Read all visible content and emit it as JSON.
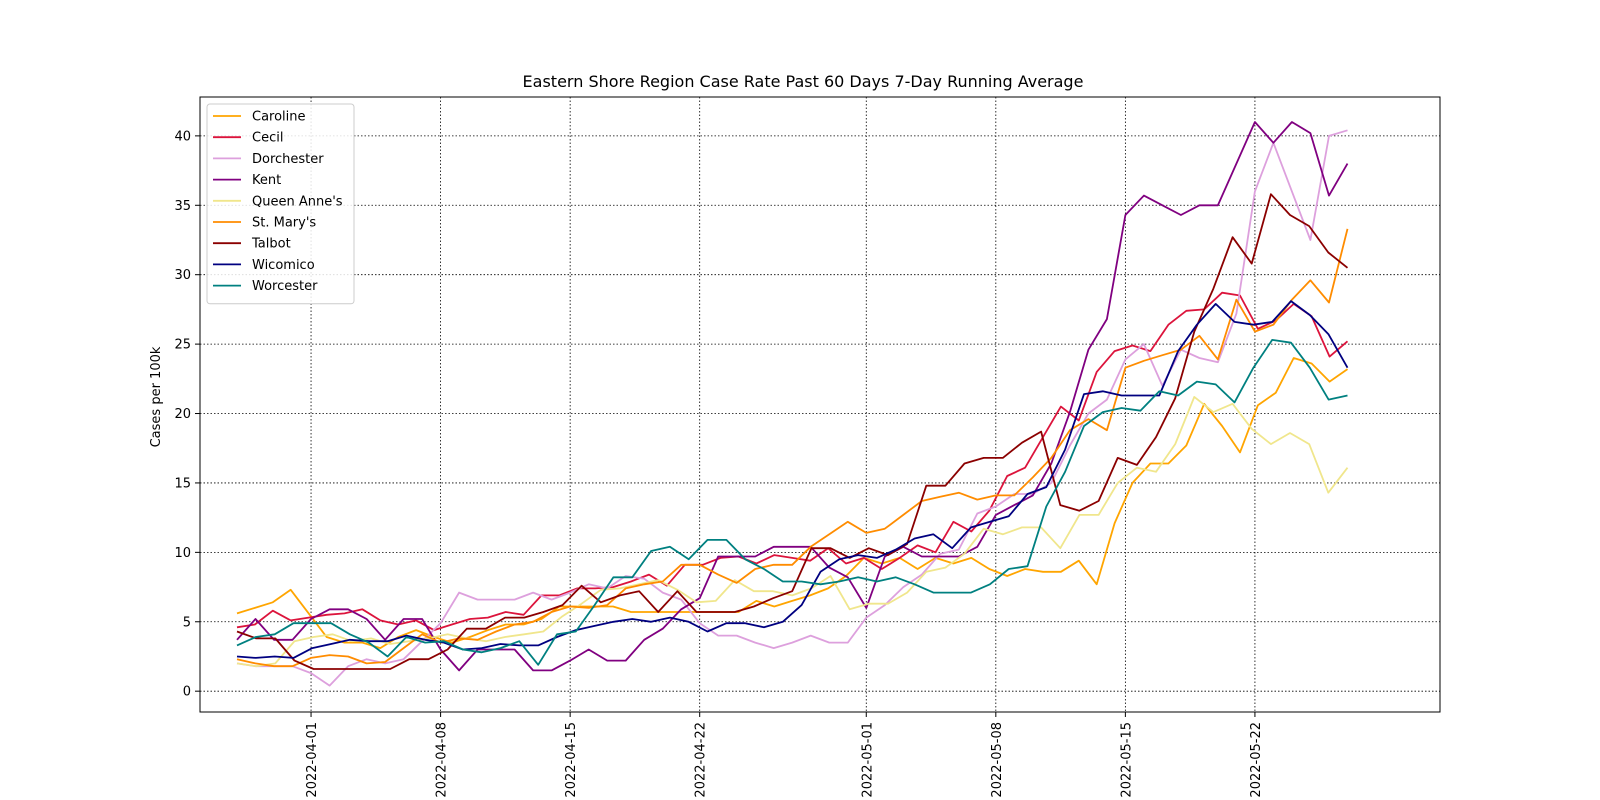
{
  "chart_data": {
    "type": "line",
    "title": "Eastern Shore Region Case Rate  Past 60 Days 7-Day Running Average",
    "xlabel": "",
    "ylabel": "Cases per 100k",
    "x_start": "2022-03-28",
    "x_end": "2022-05-27",
    "xlim": [
      "2022-03-26",
      "2022-06-01"
    ],
    "ylim": [
      -1.5,
      42.8
    ],
    "xticks": [
      "2022-04-01",
      "2022-04-08",
      "2022-04-15",
      "2022-04-22",
      "2022-05-01",
      "2022-05-08",
      "2022-05-15",
      "2022-05-22"
    ],
    "yticks": [
      0,
      5,
      10,
      15,
      20,
      25,
      30,
      35,
      40
    ],
    "grid": true,
    "legend_position": "upper-left",
    "series": [
      {
        "name": "Caroline",
        "color": "#FFA500",
        "values": [
          5.6,
          6.0,
          6.4,
          7.3,
          5.6,
          3.9,
          3.5,
          3.5,
          3.1,
          3.9,
          4.4,
          3.9,
          3.5,
          3.9,
          4.4,
          4.8,
          4.8,
          5.2,
          6.1,
          6.1,
          6.1,
          6.1,
          5.7,
          5.7,
          5.7,
          5.7,
          5.7,
          5.7,
          5.7,
          6.5,
          6.1,
          6.5,
          6.9,
          7.4,
          8.3,
          9.6,
          9.2,
          9.6,
          8.8,
          9.6,
          9.2,
          9.6,
          8.8,
          8.3,
          8.8,
          8.6,
          8.6,
          9.4,
          7.7,
          12.1,
          15.0,
          16.4,
          16.4,
          17.7,
          20.7,
          19.1,
          17.2,
          20.6,
          21.5,
          24.0,
          23.6,
          22.3,
          23.2
        ]
      },
      {
        "name": "Cecil",
        "color": "#DC143C",
        "values": [
          4.6,
          4.8,
          5.8,
          5.1,
          5.3,
          5.5,
          5.6,
          5.9,
          5.1,
          4.8,
          5.1,
          4.4,
          4.8,
          5.2,
          5.3,
          5.7,
          5.5,
          6.9,
          6.9,
          7.4,
          7.4,
          7.5,
          7.9,
          8.4,
          7.6,
          9.1,
          9.1,
          9.6,
          9.7,
          9.2,
          9.8,
          9.6,
          9.4,
          10.3,
          9.2,
          9.6,
          8.8,
          9.6,
          10.5,
          10.0,
          12.2,
          11.5,
          13.0,
          15.5,
          16.1,
          18.3,
          20.5,
          19.5,
          23.0,
          24.5,
          24.9,
          24.5,
          26.4,
          27.4,
          27.5,
          28.7,
          28.5,
          26.1,
          26.7,
          27.9,
          27.0,
          24.1,
          25.2
        ]
      },
      {
        "name": "Dorchester",
        "color": "#DDA0DD",
        "values": [
          2.0,
          1.8,
          1.8,
          1.8,
          1.3,
          0.4,
          1.8,
          2.3,
          2.0,
          2.3,
          3.6,
          4.9,
          7.1,
          6.6,
          6.6,
          6.6,
          7.1,
          6.6,
          7.1,
          7.7,
          7.4,
          8.3,
          8.1,
          7.1,
          6.6,
          4.9,
          4.0,
          4.0,
          3.5,
          3.1,
          3.5,
          4.0,
          3.5,
          3.5,
          5.3,
          6.2,
          7.5,
          8.4,
          9.9,
          10.2,
          12.8,
          13.3,
          14.2,
          14.2,
          15.0,
          17.7,
          20.0,
          21.0,
          23.9,
          25.0,
          22.0,
          24.6,
          24.0,
          23.7,
          27.2,
          36.0,
          39.5,
          36.0,
          32.5,
          40.0,
          40.4
        ]
      },
      {
        "name": "Kent",
        "color": "#800080",
        "values": [
          3.7,
          5.2,
          3.7,
          3.7,
          5.2,
          5.9,
          5.9,
          5.2,
          3.7,
          5.2,
          5.2,
          3.0,
          1.5,
          3.0,
          3.0,
          3.0,
          1.5,
          1.5,
          2.2,
          3.0,
          2.2,
          2.2,
          3.7,
          4.5,
          5.9,
          6.7,
          9.7,
          9.7,
          9.7,
          10.4,
          10.4,
          10.4,
          8.9,
          8.2,
          6.0,
          9.7,
          10.4,
          9.7,
          9.7,
          9.7,
          10.4,
          12.7,
          13.4,
          14.1,
          16.4,
          20.1,
          24.6,
          26.8,
          34.3,
          35.7,
          35.0,
          34.3,
          35.0,
          35.0,
          38.0,
          41.0,
          39.5,
          41.0,
          40.2,
          35.7,
          38.0
        ]
      },
      {
        "name": "Queen Anne's",
        "color": "#F0E68C",
        "values": [
          2.0,
          1.8,
          2.0,
          3.6,
          3.9,
          4.1,
          3.6,
          3.8,
          3.4,
          3.6,
          3.8,
          4.1,
          3.8,
          3.6,
          3.9,
          4.1,
          4.3,
          5.4,
          6.3,
          7.3,
          7.4,
          7.7,
          8.0,
          7.3,
          6.4,
          6.5,
          8.0,
          7.2,
          7.2,
          6.9,
          7.4,
          8.3,
          5.9,
          6.3,
          6.3,
          7.1,
          8.6,
          8.9,
          9.9,
          11.7,
          11.3,
          11.8,
          11.8,
          10.3,
          12.7,
          12.7,
          15.0,
          16.1,
          15.8,
          17.8,
          21.2,
          20.1,
          20.7,
          18.9,
          17.8,
          18.6,
          17.8,
          14.3,
          16.1
        ]
      },
      {
        "name": "St. Mary's",
        "color": "#FF8C00",
        "values": [
          2.3,
          2.0,
          1.8,
          1.8,
          2.4,
          2.6,
          2.5,
          2.0,
          2.1,
          3.1,
          4.1,
          3.5,
          3.8,
          3.7,
          4.3,
          4.8,
          5.0,
          5.7,
          6.1,
          6.0,
          6.2,
          7.4,
          7.7,
          7.9,
          9.1,
          9.1,
          8.4,
          7.8,
          8.8,
          9.1,
          9.1,
          10.4,
          11.3,
          12.2,
          11.4,
          11.7,
          12.7,
          13.7,
          14.0,
          14.3,
          13.8,
          14.1,
          14.1,
          15.4,
          16.8,
          18.8,
          19.6,
          18.8,
          23.3,
          23.8,
          24.2,
          24.6,
          25.6,
          23.9,
          28.2,
          25.9,
          26.4,
          28.2,
          29.6,
          28.0,
          33.3
        ]
      },
      {
        "name": "Talbot",
        "color": "#8B0000",
        "values": [
          4.3,
          3.8,
          3.8,
          2.2,
          1.6,
          1.6,
          1.6,
          1.6,
          1.6,
          2.3,
          2.3,
          3.0,
          4.5,
          4.5,
          5.3,
          5.3,
          5.7,
          6.2,
          7.6,
          6.4,
          6.9,
          7.2,
          5.7,
          7.2,
          5.7,
          5.7,
          5.7,
          6.1,
          6.7,
          7.2,
          10.3,
          10.3,
          9.6,
          10.3,
          9.8,
          10.6,
          14.8,
          14.8,
          16.4,
          16.8,
          16.8,
          17.9,
          18.7,
          13.4,
          13.0,
          13.7,
          16.8,
          16.3,
          18.3,
          21.1,
          25.9,
          29.0,
          32.7,
          30.8,
          35.8,
          34.3,
          33.5,
          31.6,
          30.5
        ]
      },
      {
        "name": "Wicomico",
        "color": "#000080",
        "values": [
          2.5,
          2.4,
          2.5,
          2.4,
          3.1,
          3.4,
          3.7,
          3.6,
          3.6,
          4.0,
          3.7,
          3.5,
          3.0,
          3.1,
          3.4,
          3.3,
          3.3,
          3.9,
          4.4,
          4.7,
          5.0,
          5.2,
          5.0,
          5.3,
          5.0,
          4.3,
          4.9,
          4.9,
          4.6,
          5.0,
          6.2,
          8.6,
          9.5,
          9.8,
          9.6,
          10.2,
          11.0,
          11.3,
          10.3,
          11.8,
          12.2,
          12.6,
          14.2,
          14.7,
          17.4,
          21.4,
          21.6,
          21.3,
          21.3,
          21.3,
          24.5,
          26.4,
          27.9,
          26.6,
          26.4,
          26.6,
          28.1,
          27.1,
          25.7,
          23.3
        ]
      },
      {
        "name": "Worcester",
        "color": "#008080",
        "values": [
          3.3,
          3.9,
          4.1,
          4.9,
          4.9,
          4.9,
          4.1,
          3.5,
          2.5,
          3.9,
          3.5,
          3.6,
          3.0,
          2.8,
          3.1,
          3.6,
          1.9,
          4.1,
          4.3,
          6.2,
          8.2,
          8.2,
          10.1,
          10.4,
          9.5,
          10.9,
          10.9,
          9.5,
          8.8,
          7.9,
          7.9,
          7.7,
          7.9,
          8.2,
          7.9,
          8.2,
          7.7,
          7.1,
          7.1,
          7.1,
          7.7,
          8.8,
          9.0,
          13.3,
          15.8,
          19.1,
          20.1,
          20.4,
          20.2,
          21.6,
          21.3,
          22.3,
          22.1,
          20.8,
          23.3,
          25.3,
          25.1,
          23.3,
          21.0,
          21.3
        ]
      }
    ]
  }
}
